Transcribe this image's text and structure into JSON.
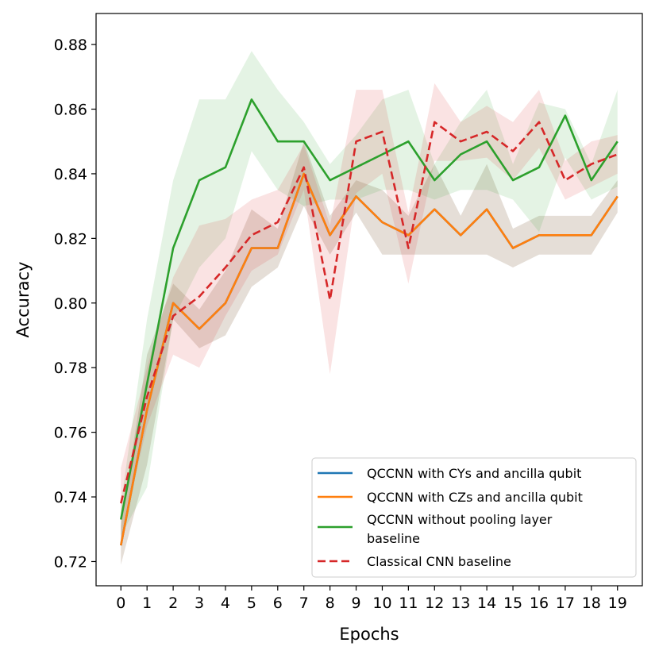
{
  "chart_data": {
    "type": "line",
    "xlabel": "Epochs",
    "ylabel": "Accuracy",
    "x": [
      0,
      1,
      2,
      3,
      4,
      5,
      6,
      7,
      8,
      9,
      10,
      11,
      12,
      13,
      14,
      15,
      16,
      17,
      18,
      19
    ],
    "xlim": [
      -0.95,
      19.95
    ],
    "ylim": [
      0.7125,
      0.8896
    ],
    "yticks": [
      0.72,
      0.74,
      0.76,
      0.78,
      0.8,
      0.82,
      0.84,
      0.86,
      0.88
    ],
    "ytick_labels": [
      "0.72",
      "0.74",
      "0.76",
      "0.78",
      "0.80",
      "0.82",
      "0.84",
      "0.86",
      "0.88"
    ],
    "grid": false,
    "legend_position": "lower-right",
    "series": [
      {
        "name": "QCCNN with CYs and ancilla qubit",
        "color": "#1f77b4",
        "dash": "solid",
        "values": [
          0.725,
          0.767,
          0.8,
          0.792,
          0.8,
          0.817,
          0.817,
          0.84,
          0.821,
          0.833,
          0.825,
          0.821,
          0.829,
          0.821,
          0.829,
          0.817,
          0.821,
          0.821,
          0.821,
          0.833
        ],
        "band_low": [
          0.719,
          0.75,
          0.795,
          0.786,
          0.79,
          0.805,
          0.811,
          0.83,
          0.815,
          0.828,
          0.815,
          0.815,
          0.815,
          0.815,
          0.815,
          0.811,
          0.815,
          0.815,
          0.815,
          0.828
        ],
        "band_high": [
          0.731,
          0.784,
          0.806,
          0.798,
          0.81,
          0.829,
          0.823,
          0.85,
          0.827,
          0.838,
          0.835,
          0.827,
          0.843,
          0.827,
          0.843,
          0.823,
          0.827,
          0.827,
          0.827,
          0.838
        ]
      },
      {
        "name": "QCCNN with CZs and ancilla qubit",
        "color": "#ff7f0e",
        "dash": "solid",
        "values": [
          0.725,
          0.767,
          0.8,
          0.792,
          0.8,
          0.817,
          0.817,
          0.84,
          0.821,
          0.833,
          0.825,
          0.821,
          0.829,
          0.821,
          0.829,
          0.817,
          0.821,
          0.821,
          0.821,
          0.833
        ],
        "band_low": [
          0.719,
          0.75,
          0.795,
          0.786,
          0.79,
          0.805,
          0.811,
          0.83,
          0.815,
          0.828,
          0.815,
          0.815,
          0.815,
          0.815,
          0.815,
          0.811,
          0.815,
          0.815,
          0.815,
          0.828
        ],
        "band_high": [
          0.731,
          0.784,
          0.806,
          0.798,
          0.81,
          0.829,
          0.823,
          0.85,
          0.827,
          0.838,
          0.835,
          0.827,
          0.843,
          0.827,
          0.843,
          0.823,
          0.827,
          0.827,
          0.827,
          0.838
        ]
      },
      {
        "name": "QCCNN without pooling layer baseline",
        "color": "#2ca02c",
        "dash": "solid",
        "values": [
          0.733,
          0.775,
          0.817,
          0.838,
          0.842,
          0.863,
          0.85,
          0.85,
          0.838,
          0.842,
          0.846,
          0.85,
          0.838,
          0.846,
          0.85,
          0.838,
          0.842,
          0.858,
          0.838,
          0.85
        ],
        "band_low": [
          0.728,
          0.743,
          0.795,
          0.811,
          0.82,
          0.847,
          0.835,
          0.83,
          0.832,
          0.832,
          0.835,
          0.835,
          0.832,
          0.835,
          0.835,
          0.832,
          0.822,
          0.845,
          0.832,
          0.836
        ],
        "band_high": [
          0.738,
          0.795,
          0.838,
          0.863,
          0.863,
          0.878,
          0.866,
          0.856,
          0.843,
          0.852,
          0.863,
          0.866,
          0.843,
          0.856,
          0.866,
          0.843,
          0.862,
          0.86,
          0.843,
          0.866
        ]
      },
      {
        "name": "Classical CNN baseline",
        "color": "#d62728",
        "dash": "dashed",
        "values": [
          0.738,
          0.771,
          0.796,
          0.802,
          0.811,
          0.821,
          0.825,
          0.842,
          0.801,
          0.85,
          0.853,
          0.817,
          0.856,
          0.85,
          0.853,
          0.847,
          0.856,
          0.838,
          0.843,
          0.846
        ],
        "band_low": [
          0.727,
          0.762,
          0.784,
          0.78,
          0.796,
          0.81,
          0.815,
          0.835,
          0.778,
          0.834,
          0.84,
          0.806,
          0.844,
          0.844,
          0.845,
          0.838,
          0.848,
          0.832,
          0.836,
          0.84
        ],
        "band_high": [
          0.749,
          0.78,
          0.808,
          0.824,
          0.826,
          0.832,
          0.835,
          0.849,
          0.824,
          0.866,
          0.866,
          0.828,
          0.868,
          0.856,
          0.861,
          0.856,
          0.866,
          0.844,
          0.85,
          0.852
        ]
      }
    ]
  }
}
